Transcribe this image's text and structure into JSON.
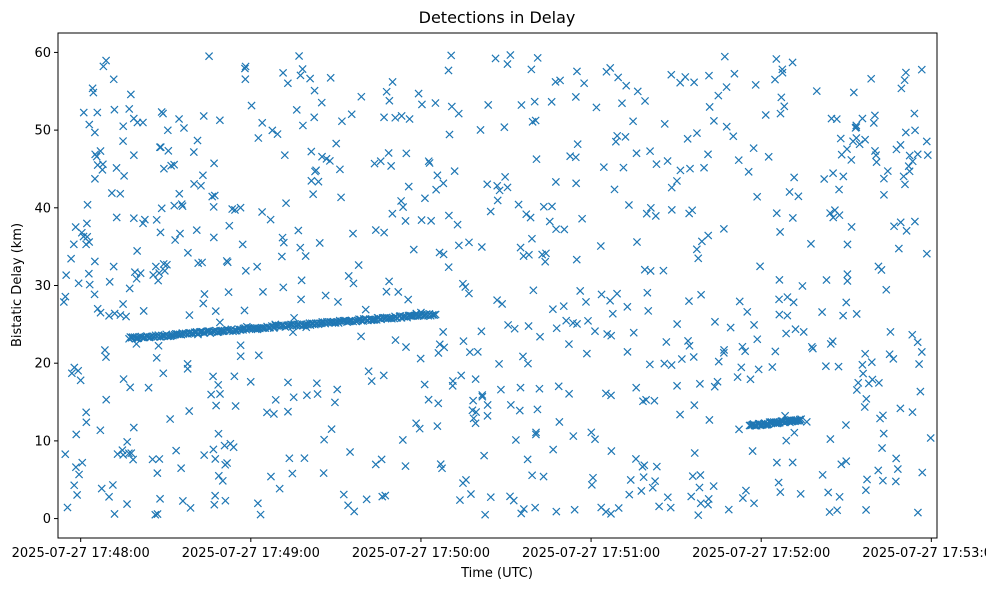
{
  "chart_data": {
    "type": "scatter",
    "title": "Detections in Delay",
    "xlabel": "Time (UTC)",
    "ylabel": "Bistatic Delay (km)",
    "x_range": [
      "2025-07-27 17:47:52",
      "2025-07-27 17:53:02"
    ],
    "ylim": [
      -2.5,
      62.5
    ],
    "x_ticks": [
      "2025-07-27 17:48:00",
      "2025-07-27 17:49:00",
      "2025-07-27 17:50:00",
      "2025-07-27 17:51:00",
      "2025-07-27 17:52:00",
      "2025-07-27 17:53:00"
    ],
    "y_ticks": [
      0,
      10,
      20,
      30,
      40,
      50,
      60
    ],
    "marker": "x",
    "grid": false,
    "series": [
      {
        "color": "#1f77b4",
        "tracks": [
          {
            "start": [
              "2025-07-27 17:48:17",
              23.2
            ],
            "end": [
              "2025-07-27 17:50:05",
              26.3
            ],
            "approx_points": 230
          },
          {
            "start": [
              "2025-07-27 17:51:56",
              12.0
            ],
            "end": [
              "2025-07-27 17:52:14",
              12.7
            ],
            "approx_points": 60
          }
        ],
        "clutter": [
          [
            "2025-07-27 17:48:01",
            36.3
          ],
          [
            "2025-07-27 17:48:03",
            35.6
          ],
          [
            "2025-07-27 17:48:05",
            33.1
          ],
          [
            "2025-07-27 17:48:02",
            12.4
          ],
          [
            "2025-07-27 17:48:06",
            27.0
          ],
          [
            "2025-07-27 17:48:07",
            26.5
          ],
          [
            "2025-07-27 17:48:10",
            26.1
          ],
          [
            "2025-07-27 17:48:12",
            26.4
          ],
          [
            "2025-07-27 17:48:14",
            26.2
          ],
          [
            "2025-07-27 17:48:16",
            26.0
          ],
          [
            "2025-07-27 17:48:13",
            8.3
          ],
          [
            "2025-07-27 17:48:15",
            8.2
          ],
          [
            "2025-07-27 17:48:17",
            8.4
          ],
          [
            "2025-07-27 17:48:08",
            58.2
          ],
          [
            "2025-07-27 17:48:06",
            45.5
          ],
          [
            "2025-07-27 17:48:09",
            15.3
          ],
          [
            "2025-07-27 17:48:05",
            49.7
          ],
          [
            "2025-07-27 17:48:11",
            41.9
          ],
          [
            "2025-07-27 17:48:10",
            2.8
          ],
          [
            "2025-07-27 17:48:15",
            50.5
          ]
        ]
      }
    ]
  }
}
